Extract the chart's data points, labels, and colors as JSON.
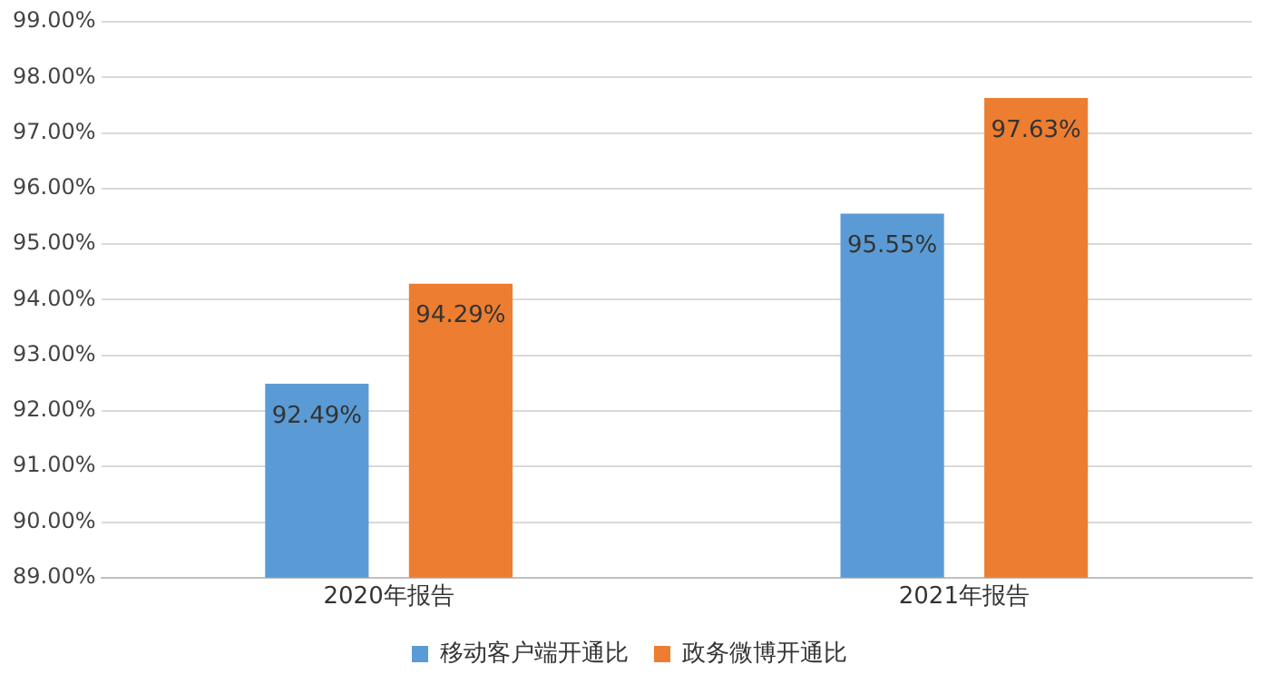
{
  "chart_data": {
    "type": "bar",
    "categories": [
      "2020年报告",
      "2021年报告"
    ],
    "series": [
      {
        "name": "移动客户端开通比",
        "color": "#5b9bd5",
        "values": [
          92.49,
          95.55
        ],
        "value_labels": [
          "92.49%",
          "95.55%"
        ]
      },
      {
        "name": "政务微博开通比",
        "color": "#ed7d31",
        "values": [
          94.29,
          97.63
        ],
        "value_labels": [
          "94.29%",
          "97.63%"
        ]
      }
    ],
    "ylim": [
      89,
      99
    ],
    "yticks": [
      {
        "value": 89,
        "label": "89.00%"
      },
      {
        "value": 90,
        "label": "90.00%"
      },
      {
        "value": 91,
        "label": "91.00%"
      },
      {
        "value": 92,
        "label": "92.00%"
      },
      {
        "value": 93,
        "label": "93.00%"
      },
      {
        "value": 94,
        "label": "94.00%"
      },
      {
        "value": 95,
        "label": "95.00%"
      },
      {
        "value": 96,
        "label": "96.00%"
      },
      {
        "value": 97,
        "label": "97.00%"
      },
      {
        "value": 98,
        "label": "98.00%"
      },
      {
        "value": 99,
        "label": "99.00%"
      }
    ],
    "grid": "y",
    "legend": "bottom"
  }
}
